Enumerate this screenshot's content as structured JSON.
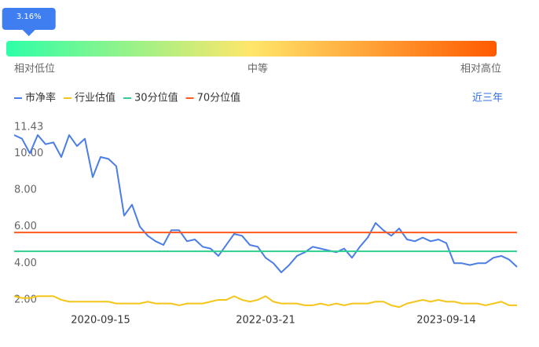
{
  "gauge": {
    "value": 3.16,
    "label": "3.16%",
    "low": "相对低位",
    "mid": "中等",
    "high": "相对高位"
  },
  "chart_data": {
    "type": "line",
    "period": "近三年",
    "categories": [
      null,
      null,
      null,
      null,
      null,
      null,
      null,
      null,
      null,
      null,
      null,
      "2020-09-15",
      null,
      null,
      null,
      null,
      null,
      null,
      null,
      null,
      null,
      null,
      null,
      null,
      null,
      null,
      null,
      null,
      null,
      null,
      null,
      null,
      "2022-03-21",
      null,
      null,
      null,
      null,
      null,
      null,
      null,
      null,
      null,
      null,
      null,
      null,
      null,
      null,
      null,
      null,
      null,
      null,
      null,
      null,
      null,
      null,
      "2023-09-14",
      null,
      null,
      null,
      null,
      null,
      null,
      null,
      null,
      null
    ],
    "ylim": [
      1.44,
      11.43
    ],
    "yticks": [
      {
        "value": 2,
        "label": "2.00"
      },
      {
        "value": 4,
        "label": "4.00"
      },
      {
        "value": 6,
        "label": "6.00"
      },
      {
        "value": 8,
        "label": "8.00"
      },
      {
        "value": 10,
        "label": "10.00"
      },
      {
        "value": 11.43,
        "label": "11.43"
      }
    ],
    "grid": false,
    "series": [
      {
        "name": "市净率",
        "color": "#4a7de6",
        "values": [
          11.0,
          10.8,
          10.0,
          11.0,
          10.5,
          10.6,
          9.8,
          11.0,
          10.4,
          10.8,
          8.7,
          9.8,
          9.7,
          9.3,
          6.6,
          7.2,
          6.0,
          5.5,
          5.2,
          5.0,
          5.8,
          5.8,
          5.2,
          5.3,
          4.9,
          4.8,
          4.4,
          5.0,
          5.6,
          5.5,
          5.0,
          4.9,
          4.3,
          4.0,
          3.5,
          3.9,
          4.4,
          4.6,
          4.9,
          4.8,
          4.7,
          4.6,
          4.8,
          4.3,
          4.9,
          5.4,
          6.2,
          5.8,
          5.5,
          5.9,
          5.3,
          5.2,
          5.4,
          5.2,
          5.3,
          5.1,
          4.0,
          4.0,
          3.9,
          4.0,
          4.0,
          4.3,
          4.4,
          4.2,
          3.8
        ]
      },
      {
        "name": "行业估值",
        "color": "#f5c518",
        "values": [
          2.2,
          2.1,
          2.1,
          2.2,
          2.2,
          2.2,
          2.0,
          1.9,
          1.9,
          1.9,
          1.9,
          1.9,
          1.9,
          1.8,
          1.8,
          1.8,
          1.8,
          1.9,
          1.8,
          1.8,
          1.8,
          1.7,
          1.8,
          1.8,
          1.8,
          1.9,
          2.0,
          2.0,
          2.2,
          2.0,
          1.9,
          2.0,
          2.2,
          1.9,
          1.8,
          1.8,
          1.8,
          1.7,
          1.7,
          1.8,
          1.7,
          1.8,
          1.7,
          1.8,
          1.8,
          1.8,
          1.9,
          1.9,
          1.7,
          1.6,
          1.8,
          1.9,
          2.0,
          1.9,
          2.0,
          1.9,
          1.9,
          1.8,
          1.8,
          1.8,
          1.7,
          1.8,
          1.9,
          1.7,
          1.7
        ]
      },
      {
        "name": "30分位值",
        "color": "#2ecf8f",
        "values": [
          4.65,
          4.65,
          4.65,
          4.65,
          4.65,
          4.65,
          4.65,
          4.65,
          4.65,
          4.65,
          4.65,
          4.65,
          4.65,
          4.65,
          4.65,
          4.65,
          4.65,
          4.65,
          4.65,
          4.65,
          4.65,
          4.65,
          4.65,
          4.65,
          4.65,
          4.65,
          4.65,
          4.65,
          4.65,
          4.65,
          4.65,
          4.65,
          4.65,
          4.65,
          4.65,
          4.65,
          4.65,
          4.65,
          4.65,
          4.65,
          4.65,
          4.65,
          4.65,
          4.65,
          4.65,
          4.65,
          4.65,
          4.65,
          4.65,
          4.65,
          4.65,
          4.65,
          4.65,
          4.65,
          4.65,
          4.65,
          4.65,
          4.65,
          4.65,
          4.65,
          4.65,
          4.65,
          4.65,
          4.65,
          4.65
        ]
      },
      {
        "name": "70分位值",
        "color": "#ff5a1f",
        "values": [
          5.68,
          5.68,
          5.68,
          5.68,
          5.68,
          5.68,
          5.68,
          5.68,
          5.68,
          5.68,
          5.68,
          5.68,
          5.68,
          5.68,
          5.68,
          5.68,
          5.68,
          5.68,
          5.68,
          5.68,
          5.68,
          5.68,
          5.68,
          5.68,
          5.68,
          5.68,
          5.68,
          5.68,
          5.68,
          5.68,
          5.68,
          5.68,
          5.68,
          5.68,
          5.68,
          5.68,
          5.68,
          5.68,
          5.68,
          5.68,
          5.68,
          5.68,
          5.68,
          5.68,
          5.68,
          5.68,
          5.68,
          5.68,
          5.68,
          5.68,
          5.68,
          5.68,
          5.68,
          5.68,
          5.68,
          5.68,
          5.68,
          5.68,
          5.68,
          5.68,
          5.68,
          5.68,
          5.68,
          5.68,
          5.68
        ]
      }
    ]
  }
}
